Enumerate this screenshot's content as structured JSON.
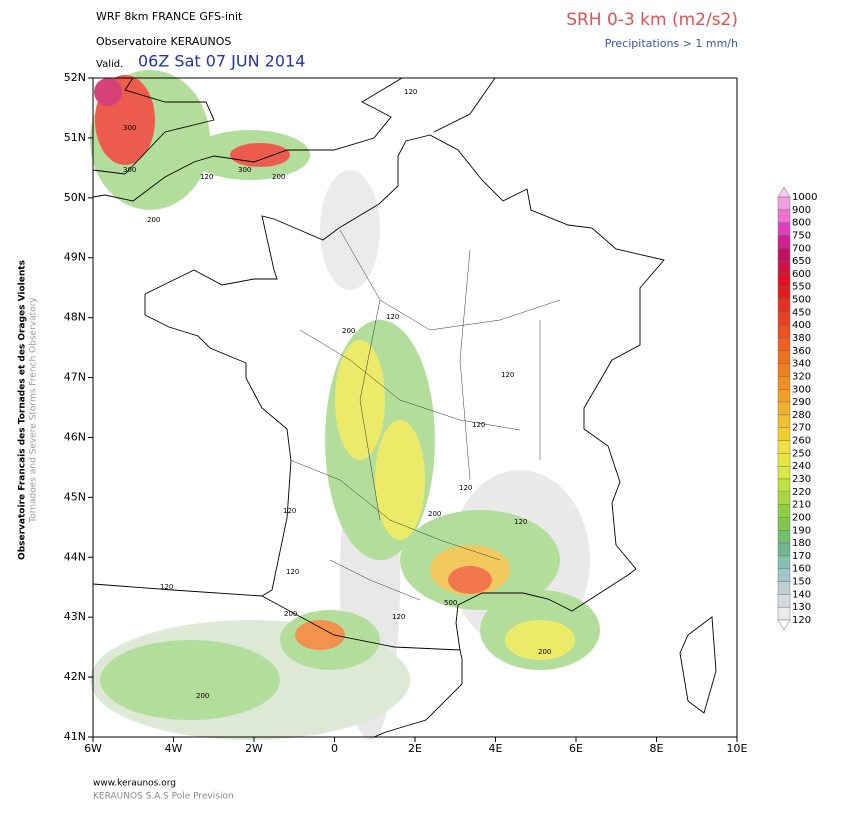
{
  "header": {
    "model": "WRF 8km FRANCE  GFS-init",
    "observatory": "Observatoire KERAUNOS",
    "valid_label": "Valid.",
    "valid_time": "06Z Sat 07 JUN 2014",
    "parameter": "SRH 0-3 km (m2/s2)",
    "overlay": "Precipitations > 1 mm/h"
  },
  "side": {
    "line1": "Observatoire Francais des Tornades et des Orages Violents",
    "line2": "Tornadoes and Severe Storms French Observatory"
  },
  "lat_labels": [
    "52N",
    "51N",
    "50N",
    "49N",
    "48N",
    "47N",
    "46N",
    "45N",
    "44N",
    "43N",
    "42N",
    "41N"
  ],
  "lon_labels": [
    "6W",
    "4W",
    "2W",
    "0",
    "2E",
    "4E",
    "6E",
    "8E",
    "10E"
  ],
  "colorbar_levels": [
    "1000",
    "900",
    "800",
    "750",
    "700",
    "650",
    "600",
    "550",
    "500",
    "450",
    "400",
    "380",
    "360",
    "340",
    "320",
    "300",
    "290",
    "280",
    "270",
    "260",
    "250",
    "240",
    "230",
    "220",
    "210",
    "200",
    "190",
    "180",
    "170",
    "160",
    "150",
    "140",
    "130",
    "120"
  ],
  "contour_labels": [
    "120",
    "300",
    "300",
    "120",
    "300",
    "200",
    "200",
    "120",
    "200",
    "120",
    "120",
    "120",
    "200",
    "120",
    "120",
    "120",
    "120",
    "200",
    "500",
    "120",
    "200",
    "200"
  ],
  "footer": {
    "site": "www.keraunos.org",
    "company": "KERAUNOS S.A.S Pole Prevision"
  }
}
